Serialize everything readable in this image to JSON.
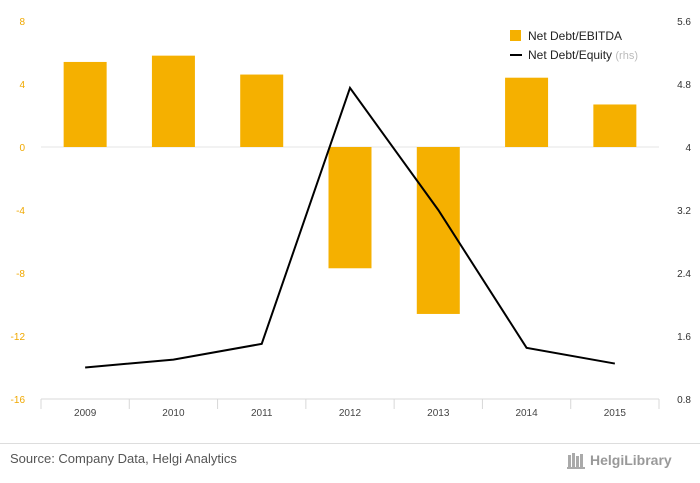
{
  "chart_data": {
    "type": "bar",
    "categories": [
      "2009",
      "2010",
      "2011",
      "2012",
      "2013",
      "2014",
      "2015"
    ],
    "series": [
      {
        "name": "Net Debt/EBITDA",
        "type": "bar",
        "axis": "left",
        "values": [
          5.4,
          5.8,
          4.6,
          -7.7,
          -10.6,
          4.4,
          2.7
        ]
      },
      {
        "name": "Net Debt/Equity",
        "note": "(rhs)",
        "type": "line",
        "axis": "right",
        "values": [
          1.2,
          1.3,
          1.5,
          4.75,
          3.2,
          1.45,
          1.25
        ]
      }
    ],
    "y_left": {
      "lim": [
        -16,
        8
      ],
      "ticks": [
        "8",
        "4",
        "0",
        "-4",
        "-8",
        "-12",
        "-16"
      ],
      "values": [
        8,
        4,
        0,
        -4,
        -8,
        -12,
        -16
      ]
    },
    "y_right": {
      "lim": [
        0.8,
        5.6
      ],
      "ticks": [
        "5.6",
        "4.8",
        "4",
        "3.2",
        "2.4",
        "1.6",
        "0.8"
      ],
      "values": [
        5.6,
        4.8,
        4,
        3.2,
        2.4,
        1.6,
        0.8
      ]
    },
    "legend_position": "top-right",
    "grid": false,
    "colors": {
      "bar": "#f5b000",
      "line": "#000000",
      "left_ticks": "#f0a800"
    }
  },
  "footer": {
    "source": "Source: Company Data, Helgi Analytics",
    "logo_text": "HelgiLibrary"
  }
}
